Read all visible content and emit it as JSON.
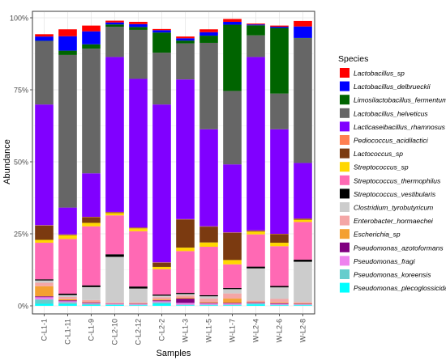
{
  "chart_data": {
    "type": "bar",
    "stacked": true,
    "xlabel": "Samples",
    "ylabel": "Abundance",
    "ylim": [
      0,
      1
    ],
    "ytick_labels": [
      "0%",
      "25%",
      "50%",
      "75%",
      "100%"
    ],
    "yticks": [
      0,
      0.25,
      0.5,
      0.75,
      1.0
    ],
    "grid": true,
    "legend_title": "Species",
    "legend_position": "right",
    "categories": [
      "C-L1-1",
      "C-L1-11",
      "C-L1-9",
      "C-L2-10",
      "C-L2-12",
      "C-L2-2",
      "W-L1-3",
      "W-L1-5",
      "W-L1-7",
      "W-L2-4",
      "W-L2-6",
      "W-L2-8"
    ],
    "series": [
      {
        "name": "Pseudomonas_plecoglossicida",
        "color": "#00FFFF",
        "values": [
          0.007,
          0.006,
          0.003,
          0.003,
          0.002,
          0.007,
          0.002,
          0.002,
          0.002,
          0.005,
          0.002,
          0.002
        ]
      },
      {
        "name": "Pseudomonas_koreensis",
        "color": "#66CDCD",
        "values": [
          0.015,
          0.006,
          0.004,
          0.002,
          0.002,
          0.005,
          0.002,
          0.002,
          0.002,
          0.003,
          0.002,
          0.002
        ]
      },
      {
        "name": "Pseudomonas_fragi",
        "color": "#EE82EE",
        "values": [
          0.008,
          0.004,
          0.003,
          0.002,
          0.002,
          0.004,
          0.006,
          0.004,
          0.004,
          0.002,
          0.003,
          0.002
        ]
      },
      {
        "name": "Pseudomonas_azotoformans",
        "color": "#800080",
        "values": [
          0.003,
          0.003,
          0.002,
          0.001,
          0.001,
          0.003,
          0.015,
          0.002,
          0.002,
          0.002,
          0.002,
          0.001
        ]
      },
      {
        "name": "Escherichia_sp",
        "color": "#F4A030",
        "values": [
          0.035,
          0.004,
          0.002,
          0.001,
          0.001,
          0.003,
          0.003,
          0.003,
          0.015,
          0.002,
          0.003,
          0.002
        ]
      },
      {
        "name": "Enterobacter_hormaechei",
        "color": "#F4A6A6",
        "values": [
          0.012,
          0.008,
          0.006,
          0.003,
          0.004,
          0.008,
          0.008,
          0.012,
          0.018,
          0.004,
          0.012,
          0.004
        ]
      },
      {
        "name": "Clostridium_tyrobutyricum",
        "color": "#CCCCCC",
        "values": [
          0.008,
          0.006,
          0.045,
          0.158,
          0.048,
          0.005,
          0.005,
          0.008,
          0.015,
          0.112,
          0.04,
          0.14
        ]
      },
      {
        "name": "Streptococcus_vestibularis",
        "color": "#000000",
        "values": [
          0.004,
          0.005,
          0.006,
          0.009,
          0.007,
          0.004,
          0.004,
          0.004,
          0.004,
          0.006,
          0.005,
          0.007
        ]
      },
      {
        "name": "Streptococcus_thermophilus",
        "color": "#FF69B4",
        "values": [
          0.127,
          0.19,
          0.205,
          0.135,
          0.192,
          0.088,
          0.145,
          0.168,
          0.082,
          0.112,
          0.138,
          0.131
        ]
      },
      {
        "name": "Streptococcus_sp",
        "color": "#FFD700",
        "values": [
          0.01,
          0.013,
          0.012,
          0.008,
          0.01,
          0.008,
          0.012,
          0.015,
          0.015,
          0.01,
          0.012,
          0.008
        ]
      },
      {
        "name": "Lactococcus_sp",
        "color": "#7B3A10",
        "values": [
          0.05,
          0.002,
          0.02,
          0.003,
          0.002,
          0.015,
          0.098,
          0.055,
          0.095,
          0.003,
          0.03,
          0.003
        ]
      },
      {
        "name": "Pediococcus_acidilactici",
        "color": "#FF7F50",
        "values": [
          0.001,
          0.001,
          0.001,
          0.001,
          0.001,
          0.001,
          0.001,
          0.001,
          0.001,
          0.001,
          0.001,
          0.001
        ]
      },
      {
        "name": "Lacticaseibacillus_rhamnosus",
        "color": "#8000FF",
        "values": [
          0.419,
          0.093,
          0.151,
          0.538,
          0.516,
          0.548,
          0.485,
          0.337,
          0.236,
          0.602,
          0.363,
          0.193
        ]
      },
      {
        "name": "Lactobacillus_helveticus",
        "color": "#666666",
        "values": [
          0.22,
          0.53,
          0.433,
          0.105,
          0.17,
          0.18,
          0.125,
          0.3,
          0.255,
          0.075,
          0.124,
          0.433
        ]
      },
      {
        "name": "Limosilactobacillus_fermentum",
        "color": "#006400",
        "values": [
          0.001,
          0.015,
          0.015,
          0.008,
          0.01,
          0.07,
          0.01,
          0.025,
          0.23,
          0.035,
          0.228,
          0.001
        ]
      },
      {
        "name": "Lactobacillus_delbrueckii",
        "color": "#0000FF",
        "values": [
          0.015,
          0.05,
          0.045,
          0.007,
          0.01,
          0.008,
          0.008,
          0.012,
          0.01,
          0.003,
          0.004,
          0.04
        ]
      },
      {
        "name": "Lactobacillus_sp",
        "color": "#FF0000",
        "values": [
          0.008,
          0.024,
          0.02,
          0.006,
          0.008,
          0.004,
          0.006,
          0.01,
          0.01,
          0.003,
          0.004,
          0.019
        ]
      }
    ]
  }
}
